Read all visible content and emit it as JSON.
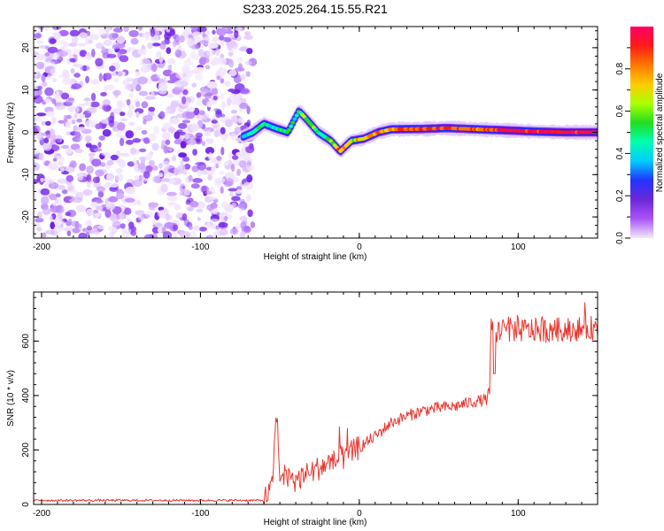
{
  "title": "S233.2025.264.15.55.R21",
  "chart_data": [
    {
      "type": "heatmap",
      "xlabel": "Height of straight line (km)",
      "ylabel": "Frequency (Hz)",
      "xlim": [
        -205,
        150
      ],
      "ylim": [
        -25,
        25
      ],
      "xticks": [
        -200,
        -100,
        0,
        100
      ],
      "yticks": [
        -20,
        -10,
        0,
        10,
        20
      ],
      "noise_region_x": [
        -205,
        -67
      ],
      "ridge": [
        {
          "x": -73,
          "y": -1,
          "a": 0.25
        },
        {
          "x": -67,
          "y": 0,
          "a": 0.55
        },
        {
          "x": -60,
          "y": 2,
          "a": 0.5
        },
        {
          "x": -53,
          "y": 1,
          "a": 0.45
        },
        {
          "x": -45,
          "y": 0,
          "a": 0.55
        },
        {
          "x": -38,
          "y": 5,
          "a": 0.45
        },
        {
          "x": -33,
          "y": 3,
          "a": 0.6
        },
        {
          "x": -26,
          "y": 0,
          "a": 0.5
        },
        {
          "x": -18,
          "y": -2,
          "a": 0.55
        },
        {
          "x": -12,
          "y": -4.5,
          "a": 0.85
        },
        {
          "x": -5,
          "y": -2,
          "a": 0.6
        },
        {
          "x": 3,
          "y": -1.5,
          "a": 0.75
        },
        {
          "x": 12,
          "y": 0,
          "a": 0.8
        },
        {
          "x": 20,
          "y": 0.7,
          "a": 0.8
        },
        {
          "x": 40,
          "y": 0.8,
          "a": 0.9
        },
        {
          "x": 55,
          "y": 1,
          "a": 0.9
        },
        {
          "x": 75,
          "y": 0.7,
          "a": 0.85
        },
        {
          "x": 90,
          "y": 0.5,
          "a": 0.9
        },
        {
          "x": 110,
          "y": 0.2,
          "a": 0.95
        },
        {
          "x": 130,
          "y": 0,
          "a": 0.95
        },
        {
          "x": 150,
          "y": 0,
          "a": 0.95
        }
      ],
      "colorbar": {
        "label": "Normalized spectral amplitude",
        "range": [
          0,
          1
        ],
        "ticks": [
          "0.0",
          "0.2",
          "0.4",
          "0.6",
          "0.8"
        ],
        "colors": [
          "#f3e9ff",
          "#a855f7",
          "#6d28d9",
          "#2233ff",
          "#00ccff",
          "#00ffb0",
          "#22dd22",
          "#aaff00",
          "#ffcc00",
          "#ff7700",
          "#ff1a1a",
          "#ff0066"
        ]
      }
    },
    {
      "type": "line",
      "xlabel": "Height of straight line (km)",
      "ylabel": "SNR (10 * v/v)",
      "xlim": [
        -205,
        150
      ],
      "ylim": [
        0,
        780
      ],
      "xticks": [
        -200,
        -100,
        0,
        100
      ],
      "yticks": [
        0,
        200,
        400,
        600
      ],
      "color": "#e8372f",
      "series": [
        {
          "x": -205,
          "y": 15
        },
        {
          "x": -150,
          "y": 15
        },
        {
          "x": -100,
          "y": 15
        },
        {
          "x": -60,
          "y": 15
        },
        {
          "x": -55,
          "y": 60
        },
        {
          "x": -52,
          "y": 340
        },
        {
          "x": -50,
          "y": 100
        },
        {
          "x": -40,
          "y": 90
        },
        {
          "x": -30,
          "y": 120
        },
        {
          "x": -20,
          "y": 150
        },
        {
          "x": -10,
          "y": 170
        },
        {
          "x": 0,
          "y": 210
        },
        {
          "x": 10,
          "y": 250
        },
        {
          "x": 20,
          "y": 300
        },
        {
          "x": 30,
          "y": 325
        },
        {
          "x": 40,
          "y": 345
        },
        {
          "x": 50,
          "y": 355
        },
        {
          "x": 60,
          "y": 360
        },
        {
          "x": 70,
          "y": 375
        },
        {
          "x": 80,
          "y": 385
        },
        {
          "x": 82,
          "y": 420
        },
        {
          "x": 83,
          "y": 640
        },
        {
          "x": 100,
          "y": 640
        },
        {
          "x": 120,
          "y": 640
        },
        {
          "x": 140,
          "y": 645
        },
        {
          "x": 150,
          "y": 650
        }
      ]
    }
  ]
}
